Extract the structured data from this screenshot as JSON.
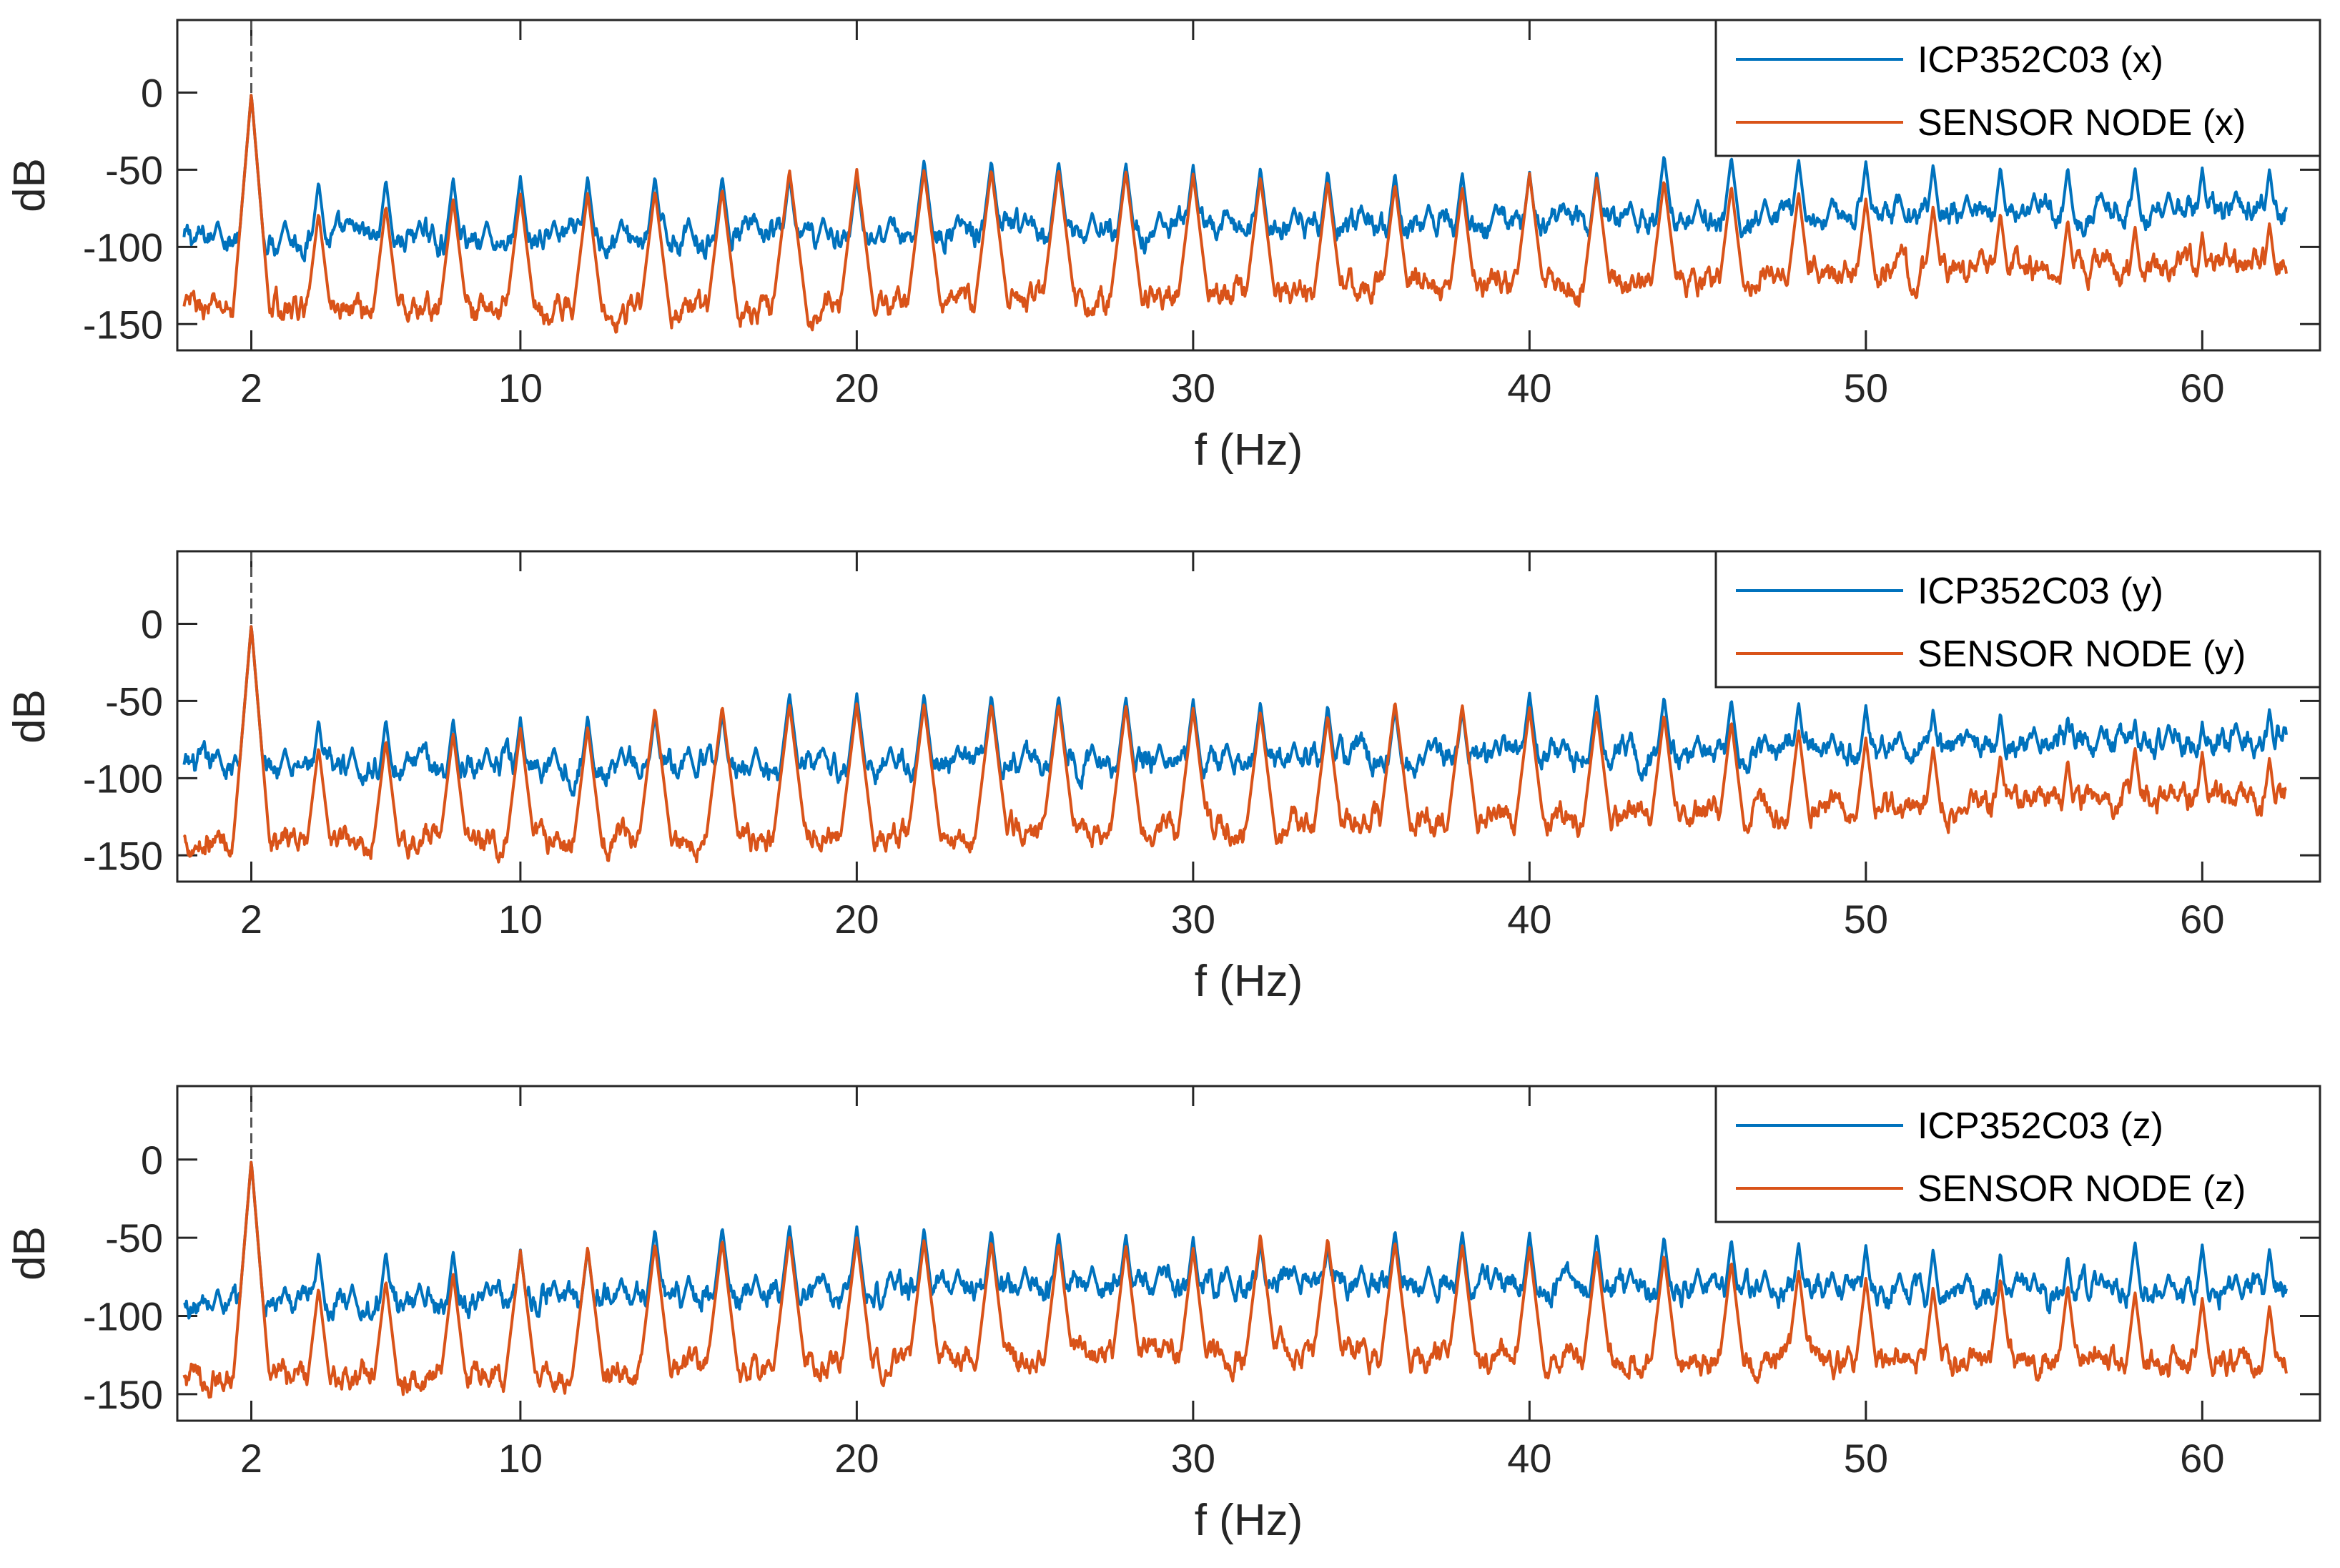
{
  "colors": {
    "reference": "#0072BD",
    "sensor": "#D95319",
    "axis": "#262626",
    "marker": "#555555"
  },
  "chart_data": [
    {
      "type": "line",
      "xlabel": "f (Hz)",
      "ylabel": "dB",
      "xlim": [
        -0.2,
        63.5
      ],
      "ylim": [
        -167,
        47
      ],
      "xticks": [
        2,
        10,
        20,
        30,
        40,
        50,
        60
      ],
      "xtick_labels": [
        "2",
        "10",
        "20",
        "30",
        "40",
        "50",
        "60"
      ],
      "yticks": [
        0,
        -50,
        -100,
        -150
      ],
      "ytick_labels": [
        "0",
        "-50",
        "-100",
        "-150"
      ],
      "marker_x": 2,
      "legend_position": "top-right",
      "series": [
        {
          "name": "ICP352C03 (x)",
          "role": "reference",
          "x_range": [
            0,
            62.5
          ],
          "harmonic_spacing": 2,
          "floor_db": [
            -95,
            -95,
            -93,
            -90,
            -85,
            -82,
            -78,
            -75
          ],
          "peak_db": [
            -65,
            -55,
            -50,
            -47,
            -50,
            -45,
            -48,
            -45
          ]
        },
        {
          "name": "SENSOR NODE (x)",
          "role": "sensor",
          "x_range": [
            0,
            62.5
          ],
          "harmonic_spacing": 2,
          "floor_db": [
            -140,
            -140,
            -140,
            -135,
            -125,
            -120,
            -115,
            -110
          ],
          "peak_db": [
            -90,
            -65,
            -55,
            -50,
            -55,
            -60,
            -75,
            -90
          ]
        }
      ]
    },
    {
      "type": "line",
      "xlabel": "f (Hz)",
      "ylabel": "dB",
      "xlim": [
        -0.2,
        63.5
      ],
      "ylim": [
        -167,
        47
      ],
      "xticks": [
        2,
        10,
        20,
        30,
        40,
        50,
        60
      ],
      "xtick_labels": [
        "2",
        "10",
        "20",
        "30",
        "40",
        "50",
        "60"
      ],
      "yticks": [
        0,
        -50,
        -100,
        -150
      ],
      "ytick_labels": [
        "0",
        "-50",
        "-100",
        "-150"
      ],
      "marker_x": 2,
      "legend_position": "top-right",
      "series": [
        {
          "name": "ICP352C03 (y)",
          "role": "reference",
          "x_range": [
            0,
            62.5
          ],
          "harmonic_spacing": 2,
          "floor_db": [
            -93,
            -92,
            -92,
            -90,
            -88,
            -85,
            -80,
            -75
          ],
          "peak_db": [
            -65,
            -60,
            -50,
            -47,
            -50,
            -50,
            -55,
            -60
          ]
        },
        {
          "name": "SENSOR NODE (y)",
          "role": "sensor",
          "x_range": [
            0,
            62.5
          ],
          "harmonic_spacing": 2,
          "floor_db": [
            -140,
            -140,
            -140,
            -135,
            -128,
            -122,
            -118,
            -112
          ],
          "peak_db": [
            -90,
            -65,
            -55,
            -50,
            -55,
            -60,
            -80,
            -90
          ]
        }
      ]
    },
    {
      "type": "line",
      "xlabel": "f (Hz)",
      "ylabel": "dB",
      "xlim": [
        -0.2,
        63.5
      ],
      "ylim": [
        -167,
        47
      ],
      "xticks": [
        2,
        10,
        20,
        30,
        40,
        50,
        60
      ],
      "xtick_labels": [
        "2",
        "10",
        "20",
        "30",
        "40",
        "50",
        "60"
      ],
      "yticks": [
        0,
        -50,
        -100,
        -150
      ],
      "ytick_labels": [
        "0",
        "-50",
        "-100",
        "-150"
      ],
      "marker_x": 2,
      "legend_position": "top-right",
      "series": [
        {
          "name": "ICP352C03 (z)",
          "role": "reference",
          "x_range": [
            0,
            62.5
          ],
          "harmonic_spacing": 2,
          "floor_db": [
            -95,
            -90,
            -85,
            -80,
            -80,
            -82,
            -85,
            -85
          ],
          "peak_db": [
            -60,
            -55,
            -45,
            -45,
            -50,
            -50,
            -55,
            -60
          ]
        },
        {
          "name": "SENSOR NODE (z)",
          "role": "sensor",
          "x_range": [
            0,
            62.5
          ],
          "harmonic_spacing": 2,
          "floor_db": [
            -140,
            -138,
            -132,
            -125,
            -125,
            -128,
            -130,
            -128
          ],
          "peak_db": [
            -90,
            -65,
            -50,
            -50,
            -55,
            -60,
            -80,
            -95
          ]
        }
      ]
    }
  ]
}
